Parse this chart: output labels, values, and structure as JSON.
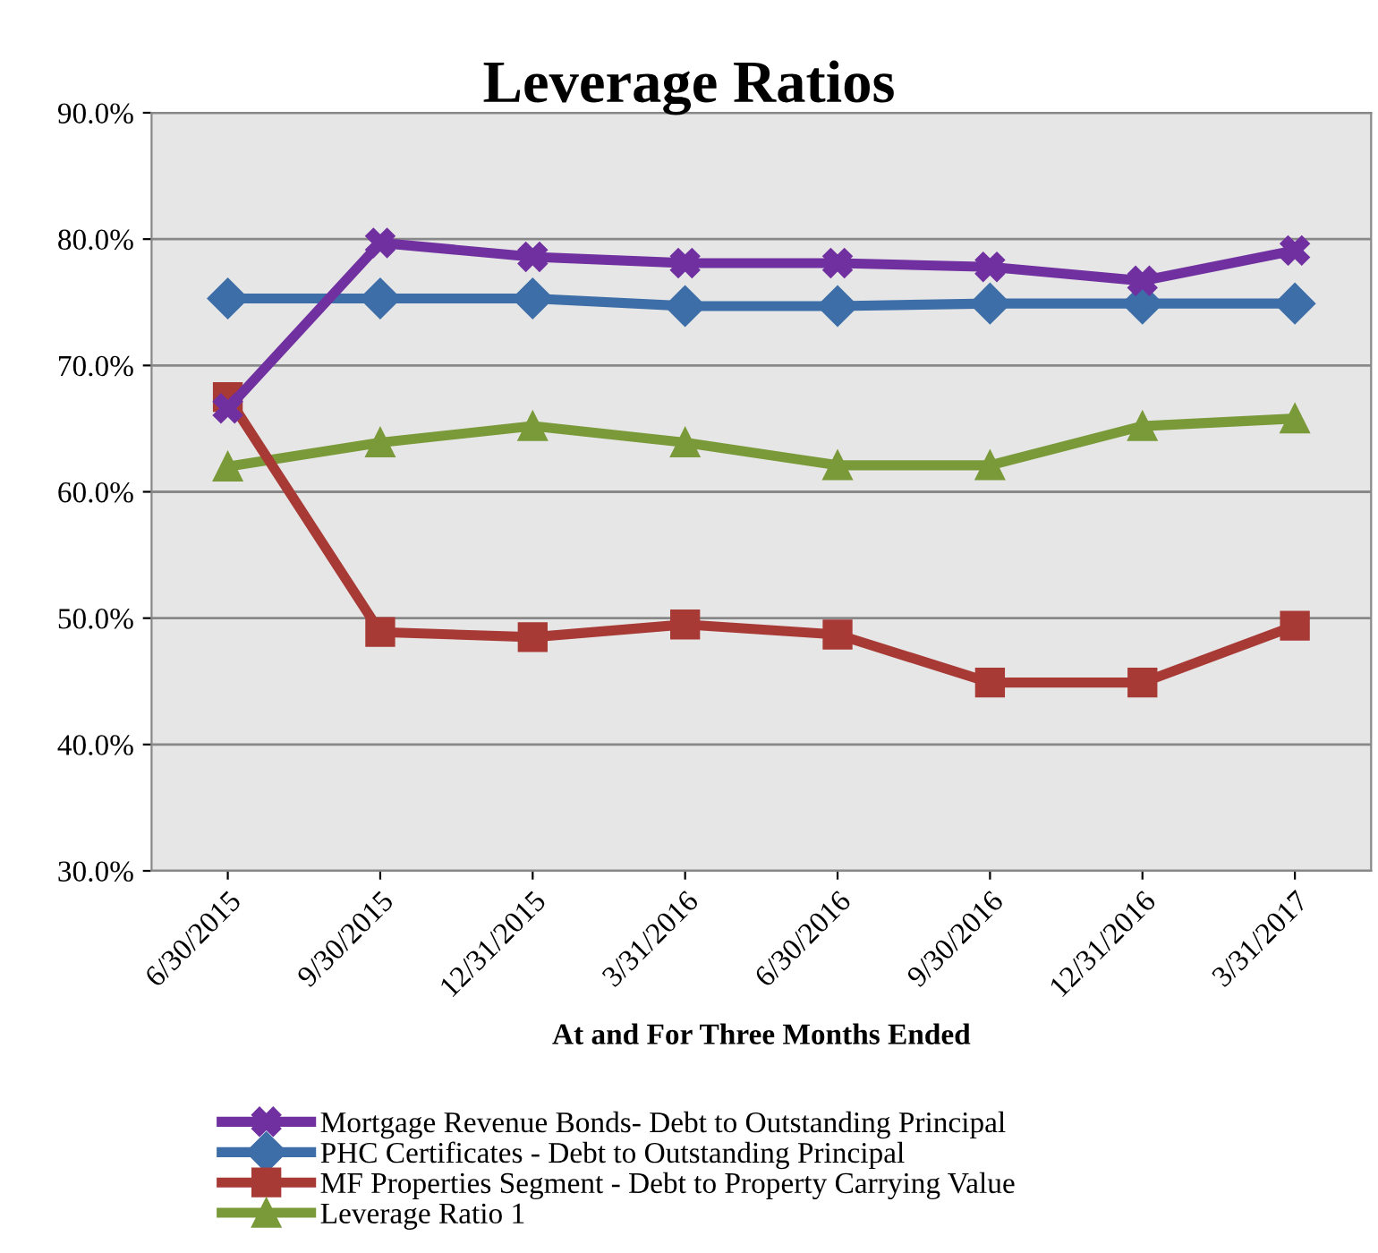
{
  "chart_data": {
    "type": "line",
    "title": "Leverage Ratios",
    "xlabel": "At and For Three Months Ended",
    "categories": [
      "6/30/2015",
      "9/30/2015",
      "12/31/2015",
      "3/31/2016",
      "6/30/2016",
      "9/30/2016",
      "12/31/2016",
      "3/31/2017"
    ],
    "series": [
      {
        "name": "Mortgage Revenue Bonds- Debt to Outstanding Principal",
        "color": "#7030a0",
        "marker": "cross",
        "values": [
          66.6,
          79.7,
          78.6,
          78.1,
          78.1,
          77.8,
          76.7,
          79.1
        ]
      },
      {
        "name": "PHC Certificates - Debt to Outstanding Principal",
        "color": "#3d6ea8",
        "marker": "diamond",
        "values": [
          75.3,
          75.3,
          75.3,
          74.7,
          74.7,
          74.9,
          74.9,
          74.9
        ]
      },
      {
        "name": "MF Properties Segment - Debt to Property Carrying Value",
        "color": "#a83a36",
        "marker": "square",
        "values": [
          67.5,
          48.9,
          48.5,
          49.5,
          48.7,
          44.9,
          44.9,
          49.4
        ]
      },
      {
        "name": "Leverage Ratio 1",
        "color": "#7a9a3a",
        "marker": "triangle",
        "values": [
          62.0,
          63.9,
          65.2,
          63.9,
          62.1,
          62.1,
          65.2,
          65.8
        ]
      }
    ],
    "ylim": [
      30,
      90
    ],
    "yticks": [
      {
        "value": 30,
        "label": "30.0%"
      },
      {
        "value": 40,
        "label": "40.0%"
      },
      {
        "value": 50,
        "label": "50.0%"
      },
      {
        "value": 60,
        "label": "60.0%"
      },
      {
        "value": 70,
        "label": "70.0%"
      },
      {
        "value": 80,
        "label": "80.0%"
      },
      {
        "value": 90,
        "label": "90.0%"
      }
    ],
    "grid": "y",
    "legend": "bottom",
    "line_style": "solid"
  }
}
